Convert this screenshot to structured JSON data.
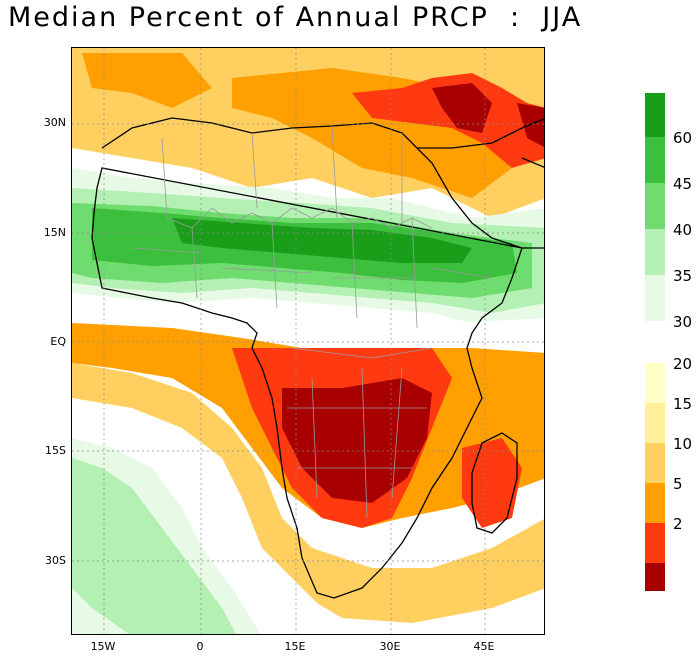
{
  "title": "Median Percent of Annual PRCP  :  JJA",
  "axes": {
    "lat_labels": [
      "30N",
      "15N",
      "EQ",
      "15S",
      "30S"
    ],
    "lon_labels": [
      "15W",
      "0",
      "15E",
      "30E",
      "45E"
    ]
  },
  "colorbar": {
    "green_labels": [
      "60",
      "45",
      "40",
      "35",
      "30"
    ],
    "orange_labels": [
      "20",
      "15",
      "10",
      "5",
      "2"
    ],
    "green_colors": [
      "#1a9e1a",
      "#3cbf3c",
      "#6fdc6f",
      "#b4f0b4",
      "#e6fae6"
    ],
    "orange_colors": [
      "#ffffc8",
      "#ffef99",
      "#ffd060",
      "#ffa000",
      "#ff3a10",
      "#a80000"
    ]
  },
  "map": {
    "ocean_color": "#ffffff",
    "land_outline_color": "#000000",
    "border_color": "#9a9a9a",
    "grid_color": "#8a8a8a"
  }
}
